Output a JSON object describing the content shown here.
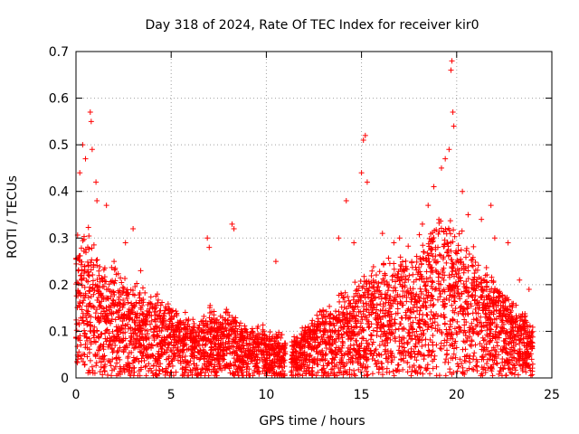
{
  "chart_data": {
    "type": "scatter",
    "title": "Day 318 of 2024, Rate Of TEC Index for receiver kir0",
    "xlabel": "GPS time / hours",
    "ylabel": "ROTI / TECUs",
    "xlim": [
      0,
      25
    ],
    "ylim": [
      0,
      0.7
    ],
    "x_ticks": [
      0,
      5,
      10,
      15,
      20,
      25
    ],
    "y_ticks": [
      0,
      0.1,
      0.2,
      0.3,
      0.4,
      0.5,
      0.6,
      0.7
    ],
    "x_tick_labels": [
      "0",
      "5",
      "10",
      "15",
      "20",
      "25"
    ],
    "y_tick_labels": [
      "0",
      "0.1",
      "0.2",
      "0.3",
      "0.4",
      "0.5",
      "0.6",
      "0.7"
    ],
    "grid": true,
    "marker": "+",
    "marker_color": "#ff0000",
    "data_gap_hours": [
      11.0,
      11.3
    ],
    "envelope": {
      "description": "upper envelope of dense ROTI point cloud (x hours, y TECU)",
      "x": [
        0,
        0.5,
        1,
        1.5,
        2,
        2.5,
        3,
        3.5,
        4,
        4.5,
        5,
        5.5,
        6,
        6.5,
        7,
        7.5,
        8,
        8.5,
        9,
        9.5,
        10,
        10.5,
        11,
        11.5,
        12,
        12.5,
        13,
        13.5,
        14,
        14.5,
        15,
        15.5,
        16,
        16.5,
        17,
        17.5,
        18,
        18.5,
        19,
        19.5,
        20,
        20.5,
        21,
        21.5,
        22,
        22.5,
        23,
        23.5,
        24
      ],
      "y": [
        0.3,
        0.3,
        0.26,
        0.22,
        0.22,
        0.2,
        0.18,
        0.18,
        0.17,
        0.16,
        0.15,
        0.13,
        0.12,
        0.11,
        0.14,
        0.12,
        0.14,
        0.11,
        0.1,
        0.1,
        0.1,
        0.09,
        0.08,
        0.08,
        0.1,
        0.12,
        0.14,
        0.15,
        0.17,
        0.18,
        0.2,
        0.22,
        0.22,
        0.24,
        0.24,
        0.25,
        0.27,
        0.3,
        0.33,
        0.33,
        0.3,
        0.27,
        0.24,
        0.22,
        0.2,
        0.17,
        0.15,
        0.13,
        0.1
      ]
    },
    "peaks": [
      {
        "x": 0.2,
        "y": 0.44
      },
      {
        "x": 0.35,
        "y": 0.5
      },
      {
        "x": 0.5,
        "y": 0.47
      },
      {
        "x": 0.75,
        "y": 0.57
      },
      {
        "x": 0.8,
        "y": 0.55
      },
      {
        "x": 0.85,
        "y": 0.49
      },
      {
        "x": 1.05,
        "y": 0.42
      },
      {
        "x": 1.1,
        "y": 0.38
      },
      {
        "x": 1.6,
        "y": 0.37
      },
      {
        "x": 2.0,
        "y": 0.25
      },
      {
        "x": 2.6,
        "y": 0.29
      },
      {
        "x": 3.0,
        "y": 0.32
      },
      {
        "x": 3.4,
        "y": 0.23
      },
      {
        "x": 6.9,
        "y": 0.3
      },
      {
        "x": 7.0,
        "y": 0.28
      },
      {
        "x": 8.2,
        "y": 0.33
      },
      {
        "x": 8.3,
        "y": 0.32
      },
      {
        "x": 10.5,
        "y": 0.25
      },
      {
        "x": 13.8,
        "y": 0.3
      },
      {
        "x": 14.2,
        "y": 0.38
      },
      {
        "x": 14.6,
        "y": 0.29
      },
      {
        "x": 15.0,
        "y": 0.44
      },
      {
        "x": 15.1,
        "y": 0.51
      },
      {
        "x": 15.2,
        "y": 0.52
      },
      {
        "x": 15.3,
        "y": 0.42
      },
      {
        "x": 16.1,
        "y": 0.31
      },
      {
        "x": 16.7,
        "y": 0.29
      },
      {
        "x": 17.0,
        "y": 0.3
      },
      {
        "x": 18.2,
        "y": 0.33
      },
      {
        "x": 18.5,
        "y": 0.37
      },
      {
        "x": 18.8,
        "y": 0.41
      },
      {
        "x": 19.2,
        "y": 0.45
      },
      {
        "x": 19.4,
        "y": 0.47
      },
      {
        "x": 19.6,
        "y": 0.49
      },
      {
        "x": 19.7,
        "y": 0.66
      },
      {
        "x": 19.75,
        "y": 0.68
      },
      {
        "x": 19.8,
        "y": 0.57
      },
      {
        "x": 19.85,
        "y": 0.54
      },
      {
        "x": 20.3,
        "y": 0.4
      },
      {
        "x": 20.6,
        "y": 0.35
      },
      {
        "x": 21.3,
        "y": 0.34
      },
      {
        "x": 21.8,
        "y": 0.37
      },
      {
        "x": 22.0,
        "y": 0.3
      },
      {
        "x": 22.7,
        "y": 0.29
      },
      {
        "x": 23.3,
        "y": 0.21
      },
      {
        "x": 23.8,
        "y": 0.19
      }
    ]
  }
}
